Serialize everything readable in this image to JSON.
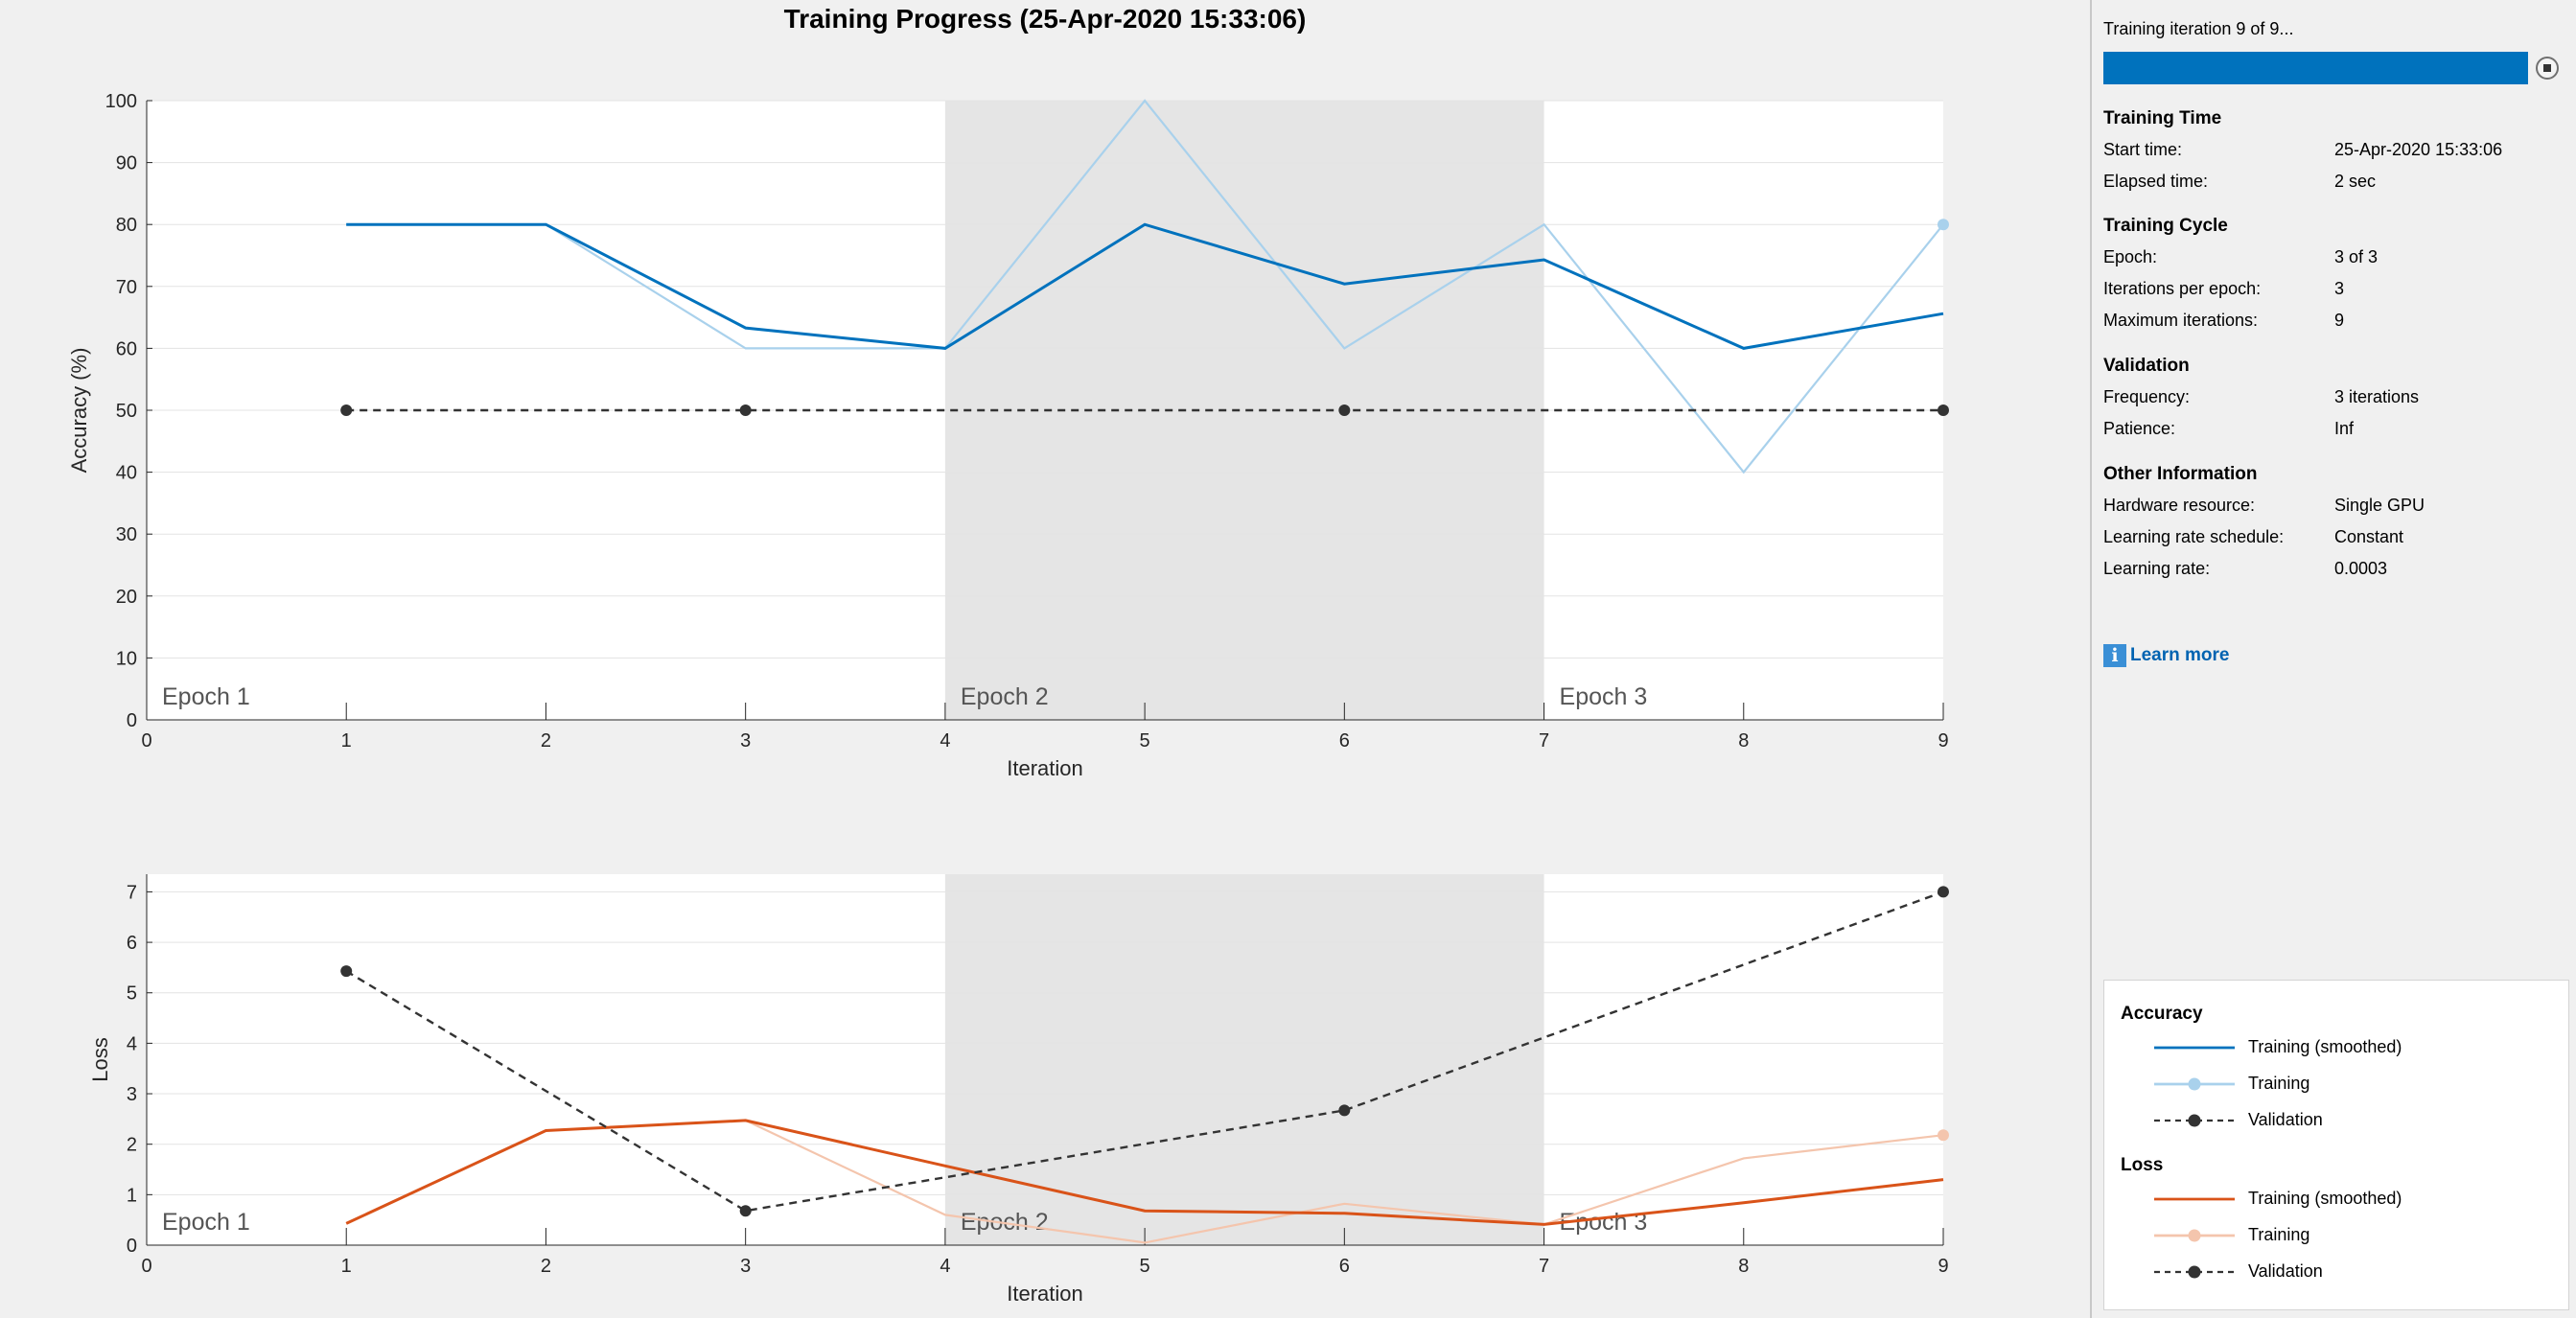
{
  "title": "Training Progress (25-Apr-2020 15:33:06)",
  "status": {
    "message": "Training iteration 9 of 9...",
    "progress_fraction": 1.0,
    "stop_icon": "stop-icon"
  },
  "info_sections": [
    {
      "title": "Training Time",
      "rows": [
        {
          "label": "Start time:",
          "value": "25-Apr-2020 15:33:06"
        },
        {
          "label": "Elapsed time:",
          "value": "2 sec"
        }
      ]
    },
    {
      "title": "Training Cycle",
      "rows": [
        {
          "label": "Epoch:",
          "value": "3 of 3"
        },
        {
          "label": "Iterations per epoch:",
          "value": "3"
        },
        {
          "label": "Maximum iterations:",
          "value": "9"
        }
      ]
    },
    {
      "title": "Validation",
      "rows": [
        {
          "label": "Frequency:",
          "value": "3 iterations"
        },
        {
          "label": "Patience:",
          "value": "Inf"
        }
      ]
    },
    {
      "title": "Other Information",
      "rows": [
        {
          "label": "Hardware resource:",
          "value": "Single GPU"
        },
        {
          "label": "Learning rate schedule:",
          "value": "Constant"
        },
        {
          "label": "Learning rate:",
          "value": "0.0003"
        }
      ]
    }
  ],
  "learn_more": {
    "label": "Learn more",
    "icon": "info-icon"
  },
  "legend": {
    "groups": [
      {
        "title": "Accuracy",
        "entries": [
          {
            "label": "Training (smoothed)",
            "color": "#0072bd",
            "style": "solid",
            "marker": false
          },
          {
            "label": "Training",
            "color": "#a9d1ec",
            "style": "solid",
            "marker": true
          },
          {
            "label": "Validation",
            "color": "#333333",
            "style": "dashed",
            "marker": true
          }
        ]
      },
      {
        "title": "Loss",
        "entries": [
          {
            "label": "Training (smoothed)",
            "color": "#d95319",
            "style": "solid",
            "marker": false
          },
          {
            "label": "Training",
            "color": "#f4c5ad",
            "style": "solid",
            "marker": true
          },
          {
            "label": "Validation",
            "color": "#333333",
            "style": "dashed",
            "marker": true
          }
        ]
      }
    ]
  },
  "chart_data": [
    {
      "type": "line",
      "xlabel": "Iteration",
      "ylabel": "Accuracy (%)",
      "xlim": [
        0,
        9
      ],
      "ylim": [
        0,
        100
      ],
      "xticks": [
        0,
        1,
        2,
        3,
        4,
        5,
        6,
        7,
        8,
        9
      ],
      "yticks": [
        0,
        10,
        20,
        30,
        40,
        50,
        60,
        70,
        80,
        90,
        100
      ],
      "grid": true,
      "epochs": [
        {
          "label": "Epoch 1",
          "start": 0,
          "end": 4,
          "shaded": false
        },
        {
          "label": "Epoch 2",
          "start": 4,
          "end": 7,
          "shaded": true
        },
        {
          "label": "Epoch 3",
          "start": 7,
          "end": 9,
          "shaded": false
        }
      ],
      "series": [
        {
          "name": "Training (smoothed)",
          "color": "#0072bd",
          "style": "solid",
          "x": [
            1,
            2,
            3,
            4,
            5,
            6,
            7,
            8,
            9
          ],
          "y": [
            80,
            80,
            63.3,
            60,
            80,
            70.4,
            74.3,
            60,
            65.6
          ]
        },
        {
          "name": "Training",
          "color": "#a9d1ec",
          "style": "solid",
          "x": [
            1,
            2,
            3,
            4,
            5,
            6,
            7,
            8,
            9
          ],
          "y": [
            80,
            80,
            60,
            60,
            100,
            60,
            80,
            40,
            80
          ],
          "end_marker": true
        },
        {
          "name": "Validation",
          "color": "#333333",
          "style": "dashed",
          "x": [
            1,
            3,
            6,
            9
          ],
          "y": [
            50,
            50,
            50,
            50
          ],
          "markers": true
        }
      ]
    },
    {
      "type": "line",
      "xlabel": "Iteration",
      "ylabel": "Loss",
      "xlim": [
        0,
        9
      ],
      "ylim": [
        0,
        7.35
      ],
      "xticks": [
        0,
        1,
        2,
        3,
        4,
        5,
        6,
        7,
        8,
        9
      ],
      "yticks": [
        0,
        1,
        2,
        3,
        4,
        5,
        6,
        7
      ],
      "grid": true,
      "epochs": [
        {
          "label": "Epoch 1",
          "start": 0,
          "end": 4,
          "shaded": false
        },
        {
          "label": "Epoch 2",
          "start": 4,
          "end": 7,
          "shaded": true
        },
        {
          "label": "Epoch 3",
          "start": 7,
          "end": 9,
          "shaded": false
        }
      ],
      "series": [
        {
          "name": "Training (smoothed)",
          "color": "#d95319",
          "style": "solid",
          "x": [
            1,
            2,
            3,
            4,
            5,
            6,
            7,
            8,
            9
          ],
          "y": [
            0.43,
            2.27,
            2.47,
            1.57,
            0.68,
            0.63,
            0.41,
            0.84,
            1.3
          ]
        },
        {
          "name": "Training",
          "color": "#f4c5ad",
          "style": "solid",
          "x": [
            1,
            2,
            3,
            4,
            5,
            6,
            7,
            8,
            9
          ],
          "y": [
            0.43,
            2.27,
            2.47,
            0.6,
            0.05,
            0.82,
            0.41,
            1.72,
            2.18
          ],
          "end_marker": true
        },
        {
          "name": "Validation",
          "color": "#333333",
          "style": "dashed",
          "x": [
            1,
            3,
            6,
            9
          ],
          "y": [
            5.43,
            0.68,
            2.67,
            7.0
          ],
          "markers": true
        }
      ]
    }
  ]
}
